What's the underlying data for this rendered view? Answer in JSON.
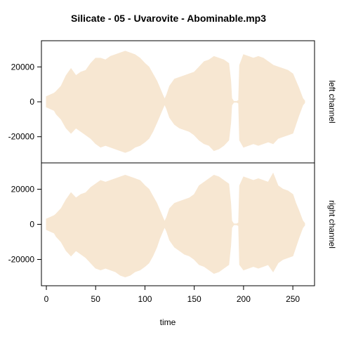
{
  "chart_data": {
    "type": "area",
    "title": "Silicate - 05 - Uvarovite - Abominable.mp3",
    "xlabel": "time",
    "xlim": [
      -5,
      272
    ],
    "xticks": [
      0,
      50,
      100,
      150,
      200,
      250
    ],
    "ylim": [
      -35000,
      35000
    ],
    "yticks": [
      -20000,
      0,
      20000
    ],
    "color": "#f7e7d2",
    "series": [
      {
        "name": "left channel",
        "x": [
          0,
          2,
          4,
          6,
          8,
          10,
          15,
          20,
          25,
          30,
          35,
          40,
          45,
          50,
          55,
          60,
          65,
          70,
          75,
          80,
          85,
          90,
          95,
          100,
          104,
          108,
          112,
          115,
          118,
          120,
          122,
          125,
          130,
          135,
          140,
          145,
          150,
          155,
          160,
          165,
          170,
          175,
          180,
          185,
          187,
          188,
          190,
          193,
          195,
          196,
          200,
          205,
          210,
          215,
          220,
          225,
          230,
          235,
          240,
          245,
          250,
          253,
          256,
          258,
          260,
          262
        ],
        "upper": [
          3000,
          3500,
          4000,
          4500,
          5000,
          6000,
          9000,
          15000,
          19000,
          15000,
          17000,
          18000,
          22000,
          25000,
          25000,
          24000,
          26000,
          27000,
          28000,
          29000,
          28000,
          27000,
          25000,
          22000,
          20000,
          16000,
          12000,
          8000,
          4000,
          1500,
          4000,
          9000,
          13000,
          14000,
          15000,
          16000,
          17000,
          20000,
          23000,
          24000,
          26000,
          25000,
          24000,
          22000,
          12000,
          2000,
          300,
          200,
          800,
          21000,
          27000,
          26000,
          25000,
          26000,
          25000,
          23000,
          21000,
          20000,
          19000,
          18000,
          16000,
          12000,
          8000,
          5000,
          2000,
          600
        ],
        "lower": [
          -3000,
          -3500,
          -4000,
          -4500,
          -5000,
          -7000,
          -10000,
          -15000,
          -18000,
          -15000,
          -17000,
          -19000,
          -21000,
          -24000,
          -26000,
          -25000,
          -26000,
          -27000,
          -28000,
          -29000,
          -28000,
          -26000,
          -25000,
          -23000,
          -21000,
          -17000,
          -12000,
          -8000,
          -4000,
          -1500,
          -4000,
          -9000,
          -13000,
          -15000,
          -16000,
          -17000,
          -19000,
          -22000,
          -24000,
          -25000,
          -28000,
          -27000,
          -25000,
          -22000,
          -12000,
          -2000,
          -300,
          -200,
          -800,
          -22000,
          -26000,
          -25000,
          -24000,
          -25000,
          -24000,
          -23000,
          -24000,
          -21000,
          -20000,
          -19000,
          -18000,
          -13000,
          -8000,
          -5000,
          -2000,
          -600
        ]
      },
      {
        "name": "right channel",
        "x": [
          0,
          2,
          4,
          6,
          8,
          10,
          15,
          20,
          25,
          30,
          35,
          40,
          45,
          50,
          55,
          60,
          65,
          70,
          75,
          80,
          85,
          90,
          95,
          100,
          104,
          108,
          112,
          115,
          118,
          120,
          122,
          125,
          130,
          135,
          140,
          145,
          150,
          155,
          160,
          165,
          170,
          175,
          180,
          185,
          187,
          188,
          190,
          193,
          195,
          196,
          200,
          205,
          210,
          215,
          220,
          225,
          230,
          235,
          240,
          245,
          250,
          253,
          256,
          258,
          260,
          262
        ],
        "upper": [
          3000,
          3500,
          4000,
          4500,
          5000,
          6000,
          9000,
          14000,
          18000,
          15000,
          17000,
          18000,
          21000,
          23000,
          25000,
          24000,
          25000,
          26000,
          27000,
          28000,
          27000,
          26000,
          25000,
          22000,
          20000,
          16000,
          12000,
          8000,
          4000,
          1500,
          4000,
          9000,
          12000,
          13000,
          14000,
          15000,
          17000,
          22000,
          24000,
          26000,
          28000,
          27000,
          25000,
          23000,
          12000,
          2000,
          300,
          200,
          800,
          22000,
          27000,
          26000,
          25000,
          26000,
          25000,
          24000,
          29000,
          22000,
          20000,
          19000,
          17000,
          12000,
          8000,
          5000,
          2000,
          600
        ],
        "lower": [
          -3000,
          -3500,
          -4000,
          -4500,
          -5000,
          -7000,
          -10000,
          -15000,
          -18000,
          -15000,
          -17000,
          -19000,
          -22000,
          -25000,
          -26000,
          -25000,
          -26000,
          -27000,
          -29000,
          -30000,
          -29000,
          -27000,
          -26000,
          -24000,
          -22000,
          -18000,
          -13000,
          -8000,
          -4000,
          -1500,
          -4000,
          -9000,
          -13000,
          -15000,
          -17000,
          -18000,
          -20000,
          -23000,
          -24000,
          -26000,
          -28000,
          -27000,
          -25000,
          -23000,
          -12000,
          -2000,
          -300,
          -200,
          -800,
          -23000,
          -26000,
          -25000,
          -24000,
          -25000,
          -24000,
          -23000,
          -27000,
          -22000,
          -20000,
          -19000,
          -18000,
          -13000,
          -8000,
          -5000,
          -2000,
          -600
        ]
      }
    ]
  }
}
